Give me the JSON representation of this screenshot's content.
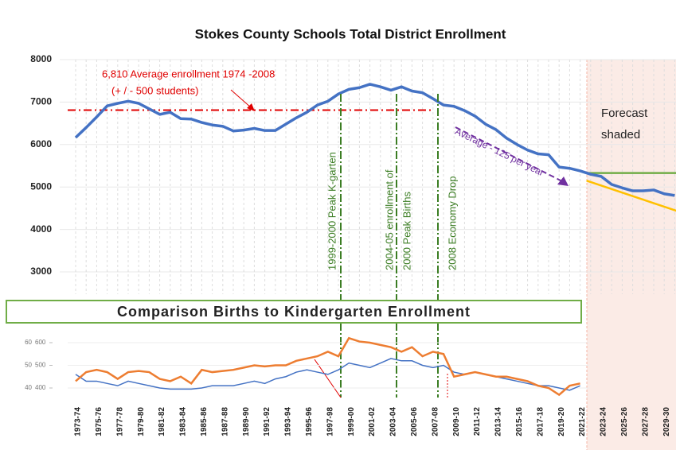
{
  "chart_data": [
    {
      "type": "line",
      "title": "Stokes County Schools Total District Enrollment",
      "categories": [
        "1973-74",
        null,
        "1975-76",
        null,
        "1977-78",
        null,
        "1979-80",
        null,
        "1981-82",
        null,
        "1983-84",
        null,
        "1985-86",
        null,
        "1987-88",
        null,
        "1989-90",
        null,
        "1991-92",
        null,
        "1993-94",
        null,
        "1995-96",
        null,
        "1997-98",
        null,
        "1999-00",
        null,
        "2001-02",
        null,
        "2003-04",
        null,
        "2005-06",
        null,
        "2007-08",
        null,
        "2009-10",
        null,
        "2011-12",
        null,
        "2013-14",
        null,
        "2015-16",
        null,
        "2017-18",
        null,
        "2019-20",
        null,
        "2021-22",
        null,
        "2023-24",
        null,
        "2025-26",
        null,
        "2027-28",
        null,
        "2029-30",
        null
      ],
      "values": [
        6165,
        6400,
        6650,
        6910,
        6970,
        7020,
        6970,
        6840,
        6710,
        6760,
        6610,
        6600,
        6520,
        6460,
        6430,
        6320,
        6340,
        6380,
        6330,
        6330,
        6480,
        6630,
        6760,
        6930,
        7020,
        7190,
        7300,
        7340,
        7420,
        7360,
        7280,
        7360,
        7260,
        7220,
        7080,
        6930,
        6900,
        6800,
        6670,
        6480,
        6350,
        6150,
        6000,
        5870,
        5780,
        5760,
        5470,
        5440,
        5380,
        5300,
        5250,
        5060,
        4980,
        4910,
        4910,
        4930,
        4840,
        4800
      ],
      "color": "#4472c4",
      "ylim": [
        3000,
        8000
      ],
      "yticks": [
        3000,
        4000,
        5000,
        6000,
        7000,
        8000
      ],
      "grid": true,
      "average": {
        "value": 6810,
        "label": "6,810 Average enrollment 1974 -2008",
        "range": "(+ / - 500 students)",
        "color": "#e00000"
      },
      "forecast_lines": [
        {
          "color": "#70ad47",
          "values": [
            null,
            null,
            null,
            null,
            null,
            null,
            null,
            null,
            null,
            null,
            null,
            null,
            null,
            null,
            null,
            null,
            null,
            null,
            null,
            null,
            null,
            null,
            null,
            null,
            null,
            null,
            null,
            null,
            null,
            null,
            null,
            null,
            null,
            null,
            null,
            null,
            null,
            null,
            null,
            null,
            null,
            null,
            null,
            null,
            null,
            null,
            null,
            null,
            5330,
            null,
            null,
            null,
            null,
            null,
            null,
            null,
            null,
            5330
          ]
        },
        {
          "color": "#ffc000",
          "values": [
            null,
            null,
            null,
            null,
            null,
            null,
            null,
            null,
            null,
            null,
            null,
            null,
            null,
            null,
            null,
            null,
            null,
            null,
            null,
            null,
            null,
            null,
            null,
            null,
            null,
            null,
            null,
            null,
            null,
            null,
            null,
            null,
            null,
            null,
            null,
            null,
            null,
            null,
            null,
            null,
            null,
            null,
            null,
            null,
            null,
            null,
            null,
            null,
            5150,
            null,
            null,
            null,
            null,
            null,
            null,
            null,
            null,
            4440
          ]
        }
      ],
      "annotations": {
        "forecast": [
          "Forecast",
          "shaded"
        ],
        "trend": "Average  - 125 per year",
        "peak_k": "1999-2000 Peak K-garten",
        "peak_births": [
          "2004-05 enrollment of",
          "2000 Peak Births"
        ],
        "economy": "2008 Economy Drop"
      }
    },
    {
      "type": "line",
      "title": "Comparison Births to Kindergarten Enrollment",
      "ylim": [
        35,
        65
      ],
      "yticks": [
        40,
        50,
        60
      ],
      "y2lim": [
        350,
        650
      ],
      "y2ticks": [
        400,
        500,
        600
      ],
      "series": [
        {
          "color": "#4472c4",
          "values": [
            46,
            43,
            43,
            42,
            41,
            43,
            42,
            41,
            40,
            39.5,
            39.5,
            39.5,
            40,
            41,
            41,
            41,
            42,
            43,
            42,
            44,
            45,
            47,
            48,
            47,
            46,
            48,
            51,
            50,
            49,
            51,
            53,
            52,
            52,
            50,
            49,
            50,
            47,
            46,
            47,
            46,
            45,
            44,
            43,
            42,
            41,
            41,
            40,
            39,
            41,
            null,
            null,
            null,
            null,
            null,
            null,
            null,
            null,
            null
          ]
        },
        {
          "color": "#ed7d31",
          "axis": "y2",
          "values": [
            430,
            470,
            480,
            470,
            440,
            470,
            475,
            470,
            440,
            430,
            450,
            420,
            480,
            470,
            475,
            480,
            490,
            500,
            495,
            500,
            500,
            520,
            530,
            540,
            560,
            540,
            620,
            605,
            600,
            590,
            580,
            560,
            580,
            540,
            560,
            550,
            450,
            460,
            470,
            460,
            450,
            450,
            440,
            430,
            410,
            400,
            370,
            410,
            420,
            null,
            null,
            null,
            null,
            null,
            null,
            null,
            null,
            null
          ]
        }
      ]
    }
  ]
}
